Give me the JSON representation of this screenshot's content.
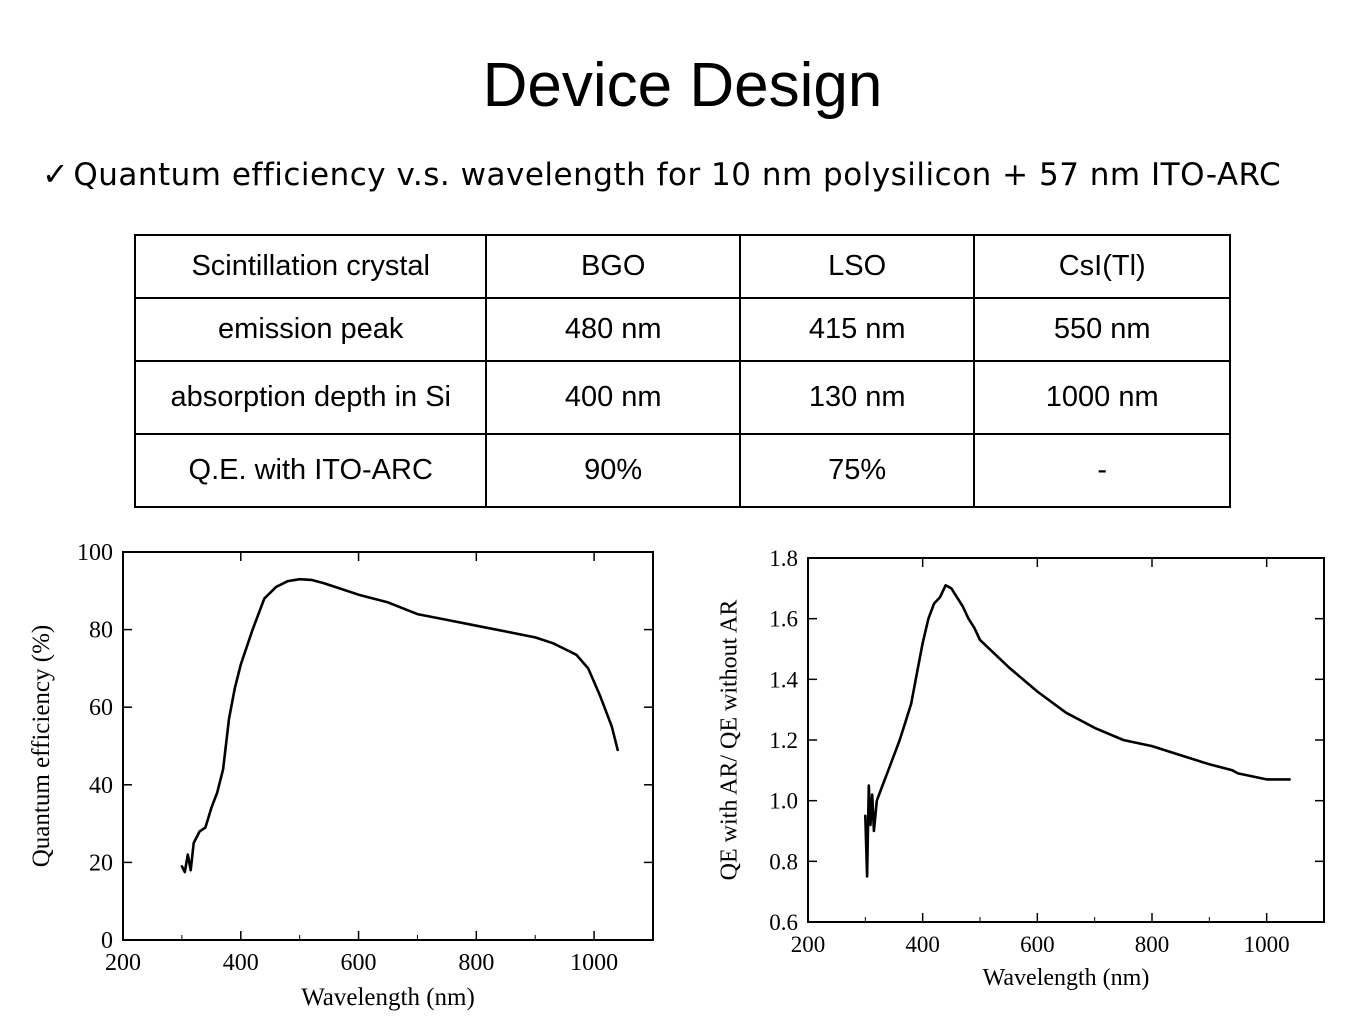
{
  "slide": {
    "title": "Device Design",
    "bullet_mark": "✓",
    "subtitle": "Quantum efficiency v.s. wavelength for 10 nm polysilicon + 57 nm ITO-ARC"
  },
  "table": {
    "rows": [
      [
        "Scintillation crystal",
        "BGO",
        "LSO",
        "CsI(Tl)"
      ],
      [
        "emission peak",
        "480 nm",
        "415 nm",
        "550 nm"
      ],
      [
        "absorption depth in Si",
        "400 nm",
        "130 nm",
        "1000 nm"
      ],
      [
        "Q.E. with ITO-ARC",
        "90%",
        "75%",
        "-"
      ]
    ]
  },
  "chart_data": [
    {
      "type": "line",
      "xlabel": "Wavelength (nm)",
      "ylabel": "Quantum efficiency (%)",
      "xlim": [
        200,
        1100
      ],
      "ylim": [
        0,
        100
      ],
      "xticks": [
        "200",
        "400",
        "600",
        "800",
        "1000"
      ],
      "yticks": [
        "0",
        "20",
        "40",
        "60",
        "80",
        "100"
      ],
      "grid": false,
      "series": [
        {
          "x": [
            300,
            305,
            310,
            315,
            320,
            330,
            340,
            350,
            360,
            370,
            380,
            390,
            400,
            420,
            440,
            460,
            480,
            500,
            520,
            540,
            560,
            600,
            650,
            700,
            750,
            800,
            850,
            900,
            930,
            950,
            970,
            990,
            1010,
            1030,
            1040
          ],
          "y": [
            19,
            17.5,
            22,
            18,
            25,
            28,
            29,
            34,
            38,
            44,
            57,
            65,
            71,
            80,
            88,
            91,
            92.5,
            93,
            92.8,
            92,
            91,
            89,
            87,
            84,
            82.5,
            81,
            79.5,
            78,
            76.5,
            75,
            73.5,
            70,
            63,
            55,
            49
          ]
        }
      ]
    },
    {
      "type": "line",
      "xlabel": "Wavelength (nm)",
      "ylabel": "QE with AR/ QE without AR",
      "xlim": [
        200,
        1100
      ],
      "ylim": [
        0.6,
        1.8
      ],
      "xticks": [
        "200",
        "400",
        "600",
        "800",
        "1000"
      ],
      "yticks": [
        "0.6",
        "0.8",
        "1.0",
        "1.2",
        "1.4",
        "1.6",
        "1.8"
      ],
      "grid": false,
      "series": [
        {
          "x": [
            300,
            303,
            306,
            309,
            312,
            315,
            320,
            330,
            340,
            350,
            360,
            370,
            380,
            390,
            400,
            410,
            420,
            430,
            440,
            450,
            460,
            470,
            480,
            490,
            500,
            550,
            600,
            650,
            700,
            750,
            800,
            850,
            900,
            940,
            950,
            1000,
            1040
          ],
          "y": [
            0.95,
            0.75,
            1.05,
            0.92,
            1.02,
            0.9,
            1.0,
            1.05,
            1.1,
            1.15,
            1.2,
            1.26,
            1.32,
            1.42,
            1.52,
            1.6,
            1.65,
            1.67,
            1.71,
            1.7,
            1.67,
            1.64,
            1.6,
            1.57,
            1.53,
            1.44,
            1.36,
            1.29,
            1.24,
            1.2,
            1.18,
            1.15,
            1.12,
            1.1,
            1.09,
            1.07,
            1.07
          ]
        }
      ]
    }
  ]
}
